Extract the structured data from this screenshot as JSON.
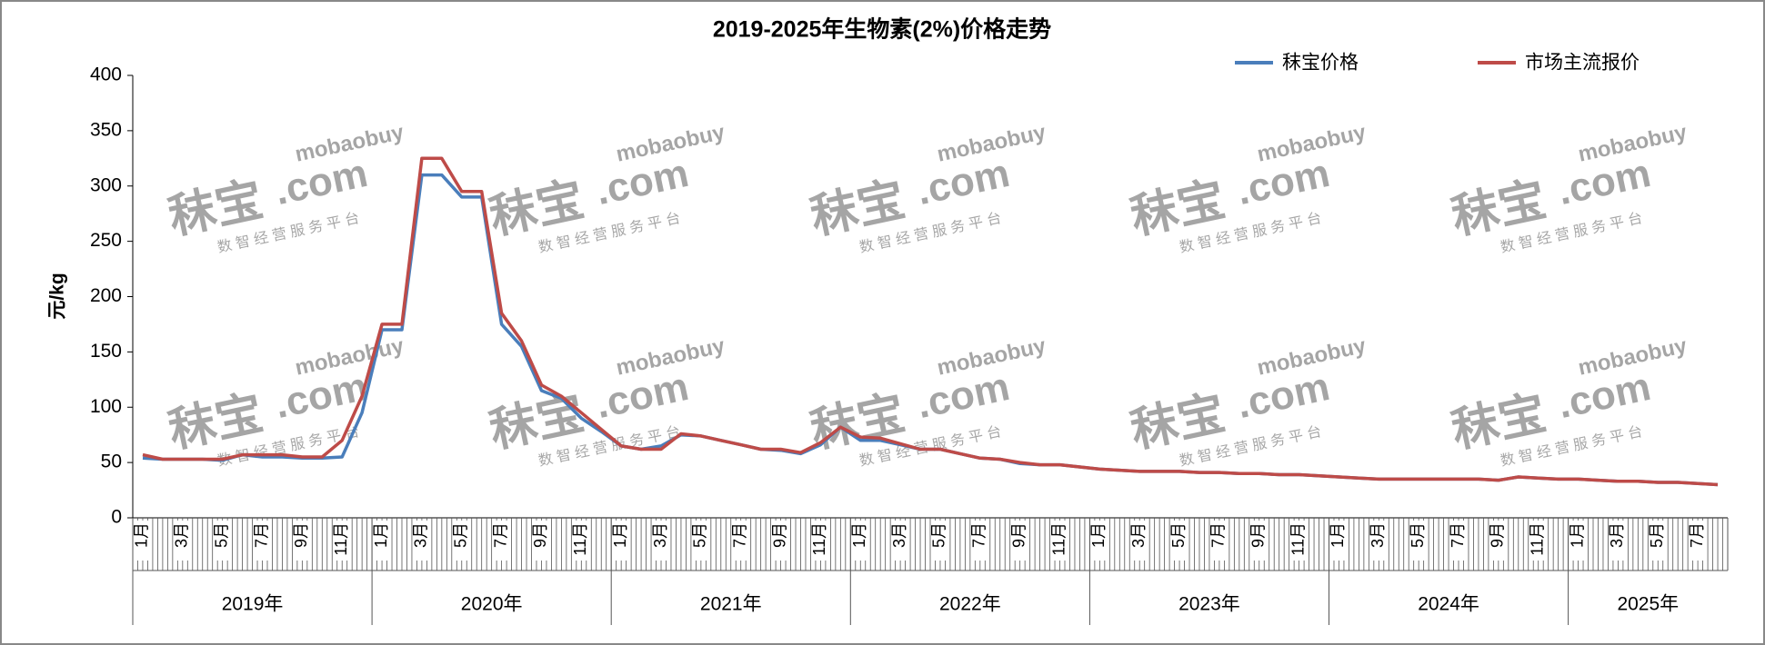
{
  "chart_data": {
    "type": "line",
    "title": "2019-2025年生物素(2%)价格走势",
    "y_label": "元/kg",
    "categories": [
      "1月",
      null,
      "3月",
      null,
      "5月",
      null,
      "7月",
      null,
      "9月",
      null,
      "11月",
      null,
      "1月",
      null,
      "3月",
      null,
      "5月",
      null,
      "7月",
      null,
      "9月",
      null,
      "11月",
      null,
      "1月",
      null,
      "3月",
      null,
      "5月",
      null,
      "7月",
      null,
      "9月",
      null,
      "11月",
      null,
      "1月",
      null,
      "3月",
      null,
      "5月",
      null,
      "7月",
      null,
      "9月",
      null,
      "11月",
      null,
      "1月",
      null,
      "3月",
      null,
      "5月",
      null,
      "7月",
      null,
      "9月",
      null,
      "11月",
      null,
      "1月",
      null,
      "3月",
      null,
      "5月",
      null,
      "7月",
      null,
      "9月",
      null,
      "11月",
      null,
      "1月",
      null,
      "3月",
      null,
      "5月",
      null,
      "7月",
      null
    ],
    "years": [
      "2019年",
      "2020年",
      "2021年",
      "2022年",
      "2023年",
      "2024年",
      "2025年"
    ],
    "series": [
      {
        "name": "秣宝价格",
        "color": "#4a7ebb",
        "values": [
          54,
          53,
          53,
          53,
          52,
          57,
          55,
          55,
          54,
          54,
          55,
          95,
          170,
          170,
          310,
          310,
          290,
          290,
          175,
          155,
          115,
          108,
          90,
          78,
          65,
          62,
          65,
          75,
          74,
          70,
          66,
          62,
          61,
          58,
          66,
          82,
          70,
          70,
          66,
          62,
          62,
          58,
          54,
          53,
          49,
          48,
          48,
          46,
          44,
          43,
          42,
          42,
          42,
          41,
          41,
          40,
          40,
          39,
          39,
          38,
          37,
          36,
          35,
          35,
          35,
          35,
          35,
          35,
          34,
          37,
          36,
          35,
          35,
          34,
          33,
          33,
          32,
          32,
          31,
          30
        ]
      },
      {
        "name": "市场主流报价",
        "color": "#be4b48",
        "values": [
          57,
          53,
          53,
          53,
          53,
          57,
          57,
          57,
          55,
          55,
          70,
          110,
          175,
          175,
          325,
          325,
          295,
          295,
          185,
          160,
          120,
          110,
          95,
          80,
          65,
          62,
          62,
          76,
          74,
          70,
          66,
          62,
          62,
          59,
          68,
          82,
          73,
          72,
          67,
          62,
          62,
          58,
          54,
          53,
          50,
          48,
          48,
          46,
          44,
          43,
          42,
          42,
          42,
          41,
          41,
          40,
          40,
          39,
          39,
          38,
          37,
          36,
          35,
          35,
          35,
          35,
          35,
          35,
          34,
          37,
          36,
          35,
          35,
          34,
          33,
          33,
          32,
          32,
          31,
          30
        ]
      }
    ],
    "ylim": [
      0,
      400
    ],
    "yticks": [
      0,
      50,
      100,
      150,
      200,
      250,
      300,
      350,
      400
    ],
    "grid": false,
    "legend": "top-right",
    "watermark": {
      "brand": "秣宝",
      "domain": ".com",
      "latin": "mobaobuy",
      "slogan": "数 智 经 营 服 务 平 台"
    }
  }
}
